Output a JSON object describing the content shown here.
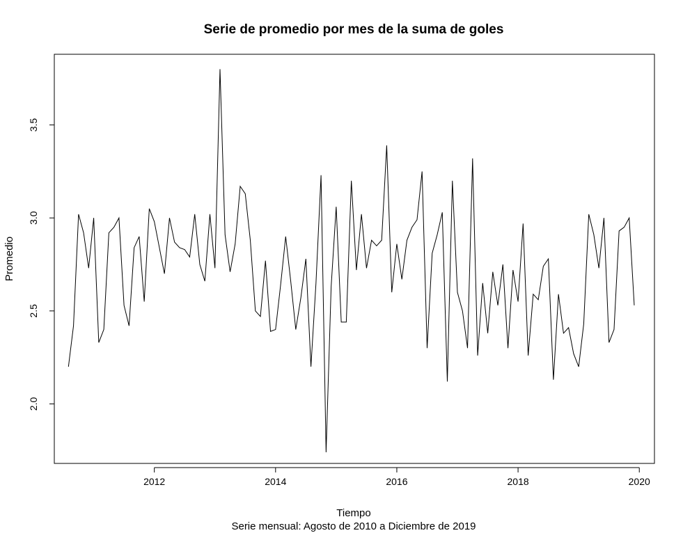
{
  "chart_data": {
    "type": "line",
    "title": "Serie de promedio por mes de la suma de goles",
    "xlabel": "Tiempo",
    "ylabel": "Promedio",
    "subtitle": "Serie mensual: Agosto de 2010 a Diciembre de 2019",
    "xlim": [
      2010.35,
      2020.25
    ],
    "ylim": [
      1.68,
      3.88
    ],
    "x_ticks": [
      2012,
      2014,
      2016,
      2018,
      2020
    ],
    "y_ticks": [
      2.0,
      2.5,
      3.0,
      3.5
    ],
    "x_tick_labels": [
      "2012",
      "2014",
      "2016",
      "2018",
      "2020"
    ],
    "y_tick_labels": [
      "2.0",
      "2.5",
      "3.0",
      "3.5"
    ],
    "grid": false,
    "series": [
      {
        "color": "#000000",
        "x_start": 2010.5833,
        "x_step": 0.083333,
        "values": [
          2.2,
          2.42,
          3.02,
          2.92,
          2.73,
          3.0,
          2.33,
          2.4,
          2.92,
          2.95,
          3.0,
          2.53,
          2.42,
          2.84,
          2.9,
          2.55,
          3.05,
          2.98,
          2.84,
          2.7,
          3.0,
          2.87,
          2.84,
          2.83,
          2.79,
          3.02,
          2.75,
          2.66,
          3.02,
          2.73,
          3.8,
          2.91,
          2.71,
          2.86,
          3.17,
          3.13,
          2.88,
          2.5,
          2.47,
          2.77,
          2.39,
          2.4,
          2.64,
          2.9,
          2.66,
          2.4,
          2.57,
          2.78,
          2.2,
          2.65,
          3.23,
          1.74,
          2.63,
          3.06,
          2.44,
          2.44,
          3.2,
          2.72,
          3.02,
          2.73,
          2.88,
          2.85,
          2.88,
          3.39,
          2.6,
          2.86,
          2.67,
          2.88,
          2.95,
          2.99,
          3.25,
          2.3,
          2.81,
          2.91,
          3.03,
          2.12,
          3.2,
          2.6,
          2.5,
          2.3,
          3.32,
          2.26,
          2.65,
          2.38,
          2.71,
          2.53,
          2.75,
          2.3,
          2.72,
          2.55,
          2.97,
          2.26,
          2.59,
          2.56,
          2.74,
          2.78,
          2.13,
          2.59,
          2.38,
          2.41,
          2.27,
          2.2,
          2.43,
          3.02,
          2.91,
          2.73,
          3.0,
          2.33,
          2.4,
          2.93,
          2.95,
          3.0,
          2.53
        ]
      }
    ]
  }
}
